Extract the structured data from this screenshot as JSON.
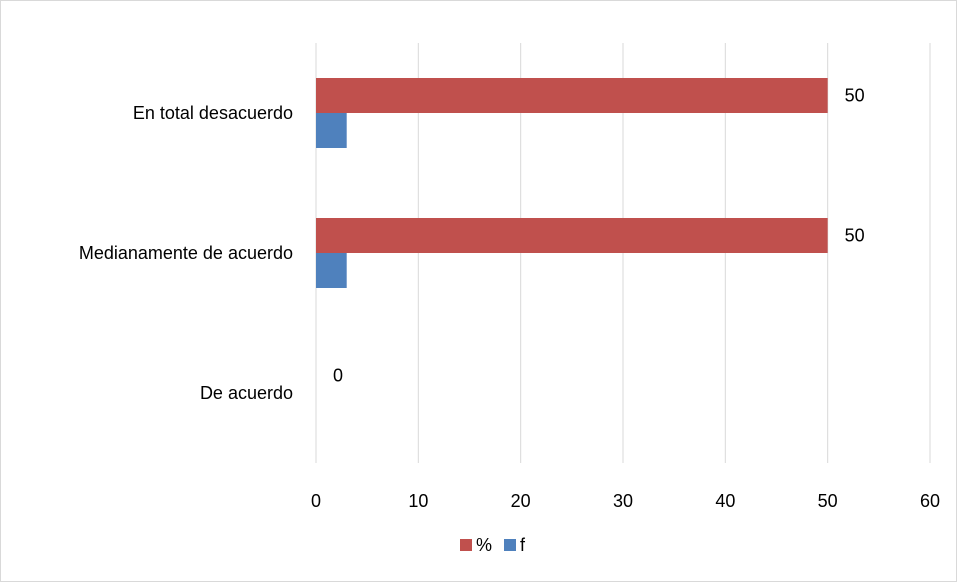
{
  "chart_data": {
    "type": "bar",
    "orientation": "horizontal",
    "categories": [
      "En total desacuerdo",
      "Medianamente de acuerdo",
      "De acuerdo"
    ],
    "series": [
      {
        "name": "%",
        "values": [
          50,
          50,
          0
        ],
        "color": "#c0504d",
        "data_labels": [
          "50",
          "50",
          "0"
        ]
      },
      {
        "name": "f",
        "values": [
          3,
          3,
          0
        ],
        "color": "#4f81bd"
      }
    ],
    "xlim": [
      0,
      60
    ],
    "x_ticks": [
      "0",
      "10",
      "20",
      "30",
      "40",
      "50",
      "60"
    ],
    "grid": true,
    "legend_position": "bottom"
  }
}
